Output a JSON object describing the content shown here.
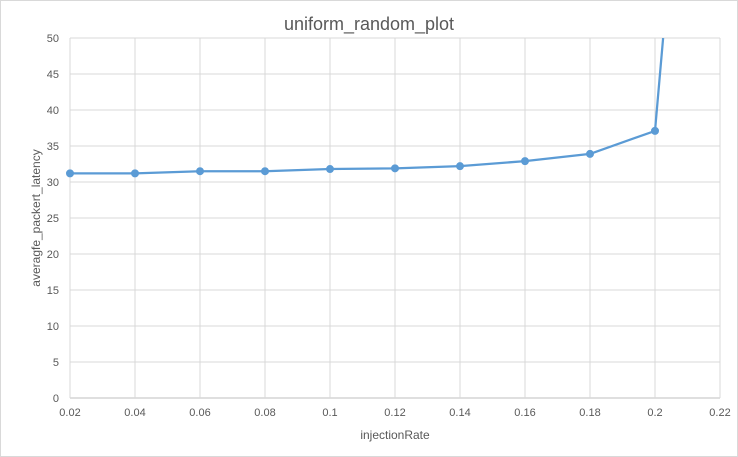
{
  "chart_data": {
    "type": "line",
    "title": "uniform_random_plot",
    "xlabel": "injectionRate",
    "ylabel": "averagfe_packert_latency",
    "xlim": [
      0.02,
      0.22
    ],
    "ylim": [
      0,
      50
    ],
    "x_ticks": [
      "0.02",
      "0.04",
      "0.06",
      "0.08",
      "0.1",
      "0.12",
      "0.14",
      "0.16",
      "0.18",
      "0.2",
      "0.22"
    ],
    "y_ticks": [
      "0",
      "5",
      "10",
      "15",
      "20",
      "25",
      "30",
      "35",
      "40",
      "45",
      "50"
    ],
    "grid": true,
    "legend": "none",
    "series": [
      {
        "color": "#5b9bd5",
        "x": [
          0.02,
          0.04,
          0.06,
          0.08,
          0.1,
          0.12,
          0.14,
          0.16,
          0.18,
          0.2
        ],
        "y": [
          31.2,
          31.2,
          31.5,
          31.5,
          31.8,
          31.9,
          32.2,
          32.9,
          33.9,
          37.1
        ],
        "continues_off_chart_to": {
          "x": 0.2025,
          "y": 50
        }
      }
    ]
  }
}
